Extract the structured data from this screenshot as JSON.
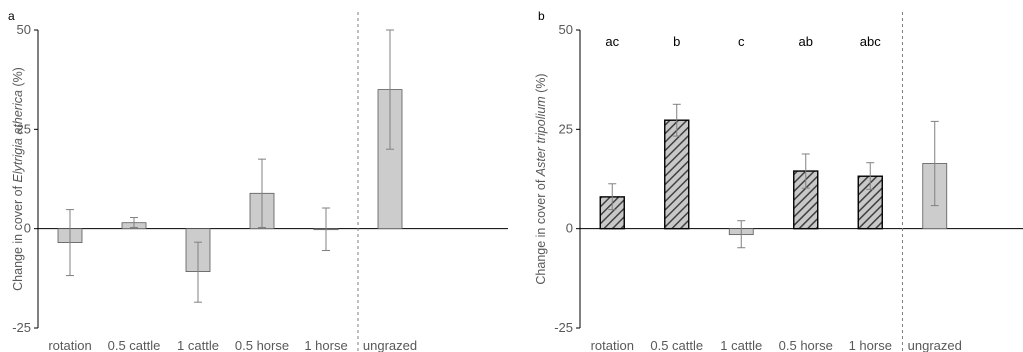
{
  "chart_data": [
    {
      "type": "bar",
      "panel_label": "a",
      "categories": [
        "rotation",
        "0.5 cattle",
        "1 cattle",
        "0.5 horse",
        "1 horse",
        "ungrazed"
      ],
      "values": [
        -3.5,
        1.5,
        -10.8,
        8.9,
        -0.2,
        35.0
      ],
      "error_low": [
        -11.8,
        0.3,
        -18.5,
        0.3,
        -5.5,
        20.0
      ],
      "error_high": [
        4.8,
        2.8,
        -3.4,
        17.5,
        5.2,
        50.0
      ],
      "patterns": [
        "solid",
        "solid",
        "solid",
        "solid",
        "solid",
        "solid"
      ],
      "significance_letters": [
        "",
        "",
        "",
        "",
        "",
        ""
      ],
      "ylabel_prefix": "Change in cover of ",
      "ylabel_species": "Elytrigia atherica",
      "ylabel_suffix": " (%)",
      "ylim": [
        -25,
        50
      ],
      "yticks": [
        -25,
        0,
        25,
        50
      ],
      "separator_after_index": 4,
      "grid": false
    },
    {
      "type": "bar",
      "panel_label": "b",
      "categories": [
        "rotation",
        "0.5 cattle",
        "1 cattle",
        "0.5 horse",
        "1 horse",
        "ungrazed"
      ],
      "values": [
        8.0,
        27.3,
        -1.5,
        14.5,
        13.2,
        16.4
      ],
      "error_low": [
        4.8,
        23.3,
        -4.8,
        10.2,
        9.9,
        5.8
      ],
      "error_high": [
        11.3,
        31.3,
        2.0,
        18.8,
        16.6,
        27.0
      ],
      "patterns": [
        "hatched",
        "hatched",
        "solid",
        "hatched",
        "hatched",
        "solid"
      ],
      "significance_letters": [
        "ac",
        "b",
        "c",
        "ab",
        "abc",
        ""
      ],
      "ylabel_prefix": "Change in cover of ",
      "ylabel_species": "Aster tripolium",
      "ylabel_suffix": " (%)",
      "ylim": [
        -25,
        50
      ],
      "yticks": [
        -25,
        0,
        25,
        50
      ],
      "separator_after_index": 4,
      "grid": false
    }
  ],
  "colors": {
    "bar_fill": "#cccccc",
    "bar_edge": "#595959",
    "hatch_fill": "#c8c8c8",
    "hatch_stroke": "#404040",
    "axis": "#000000",
    "error_bar": "#808080",
    "separator": "#7f7f7f",
    "text": "#595959",
    "sig_text": "#000000"
  }
}
